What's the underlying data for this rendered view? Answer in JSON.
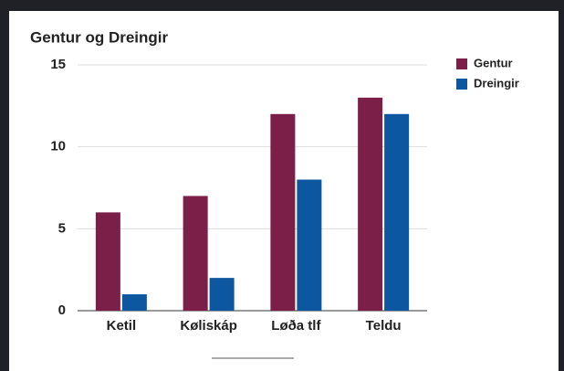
{
  "chart_data": {
    "type": "bar",
    "title": "Gentur og Dreingir",
    "categories": [
      "Ketil",
      "Køliskáp",
      "Løða tlf",
      "Teldu"
    ],
    "series": [
      {
        "name": "Gentur",
        "color": "#7b1f48",
        "values": [
          6,
          7,
          12,
          13
        ]
      },
      {
        "name": "Dreingir",
        "color": "#0d56a0",
        "values": [
          1,
          2,
          8,
          12
        ]
      }
    ],
    "ylim": [
      0,
      15
    ],
    "yticks": [
      0,
      5,
      10,
      15
    ],
    "grid": true,
    "legend": "right"
  }
}
